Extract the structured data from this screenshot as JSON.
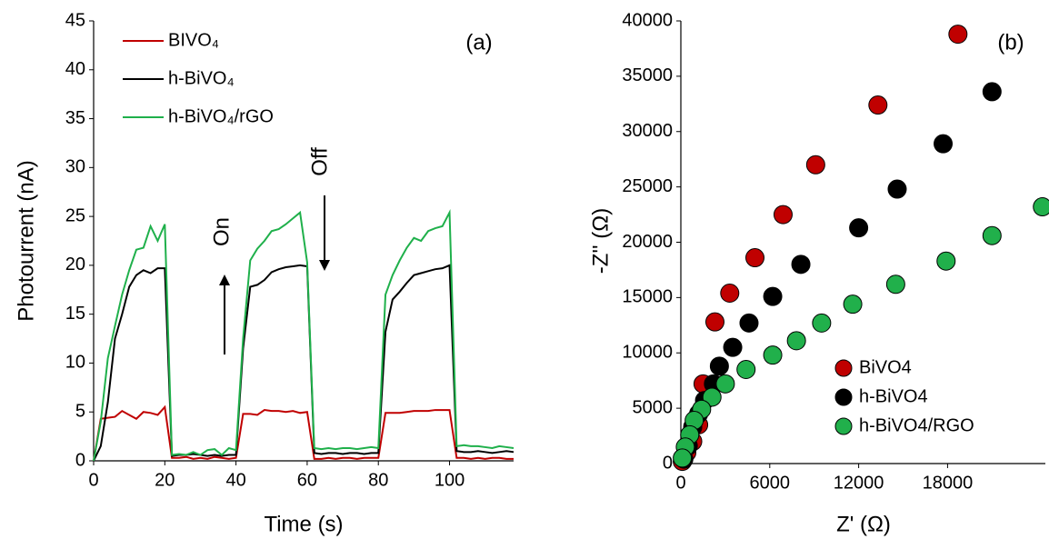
{
  "chart_data": [
    {
      "type": "line",
      "xlabel": "Time (s)",
      "ylabel": "Photourrent (nA)",
      "annotations": [
        "(a)",
        "On",
        "Off"
      ],
      "x": [
        0,
        2,
        4,
        6,
        8,
        10,
        12,
        14,
        16,
        18,
        20,
        22,
        24,
        26,
        28,
        30,
        32,
        34,
        36,
        38,
        40,
        42,
        44,
        46,
        48,
        50,
        52,
        54,
        56,
        58,
        60,
        62,
        64,
        66,
        68,
        70,
        72,
        74,
        76,
        78,
        80,
        82,
        84,
        86,
        88,
        90,
        92,
        94,
        96,
        98,
        100,
        102,
        104,
        106,
        108,
        110,
        112,
        114,
        116,
        118
      ],
      "xlim": [
        0,
        118
      ],
      "xticks": [
        0,
        20,
        40,
        60,
        80,
        100
      ],
      "ylim": [
        0,
        45
      ],
      "yticks": [
        0,
        5,
        10,
        15,
        20,
        25,
        30,
        35,
        40,
        45
      ],
      "series": [
        {
          "name": "BIVO₄",
          "color": "#c00000",
          "values": [
            0,
            4.3,
            4.4,
            4.5,
            5.1,
            4.7,
            4.3,
            5.0,
            4.9,
            4.7,
            5.5,
            0.3,
            0.3,
            0.4,
            0.2,
            0.3,
            0.2,
            0.4,
            0.3,
            0.2,
            0.3,
            4.8,
            4.8,
            4.7,
            5.2,
            5.1,
            5.1,
            5.0,
            5.1,
            4.9,
            5.0,
            0.2,
            0.2,
            0.3,
            0.2,
            0.3,
            0.3,
            0.2,
            0.3,
            0.3,
            0.3,
            4.9,
            4.9,
            4.9,
            5.0,
            5.1,
            5.1,
            5.1,
            5.2,
            5.2,
            5.2,
            0.3,
            0.3,
            0.2,
            0.3,
            0.2,
            0.3,
            0.3,
            0.2,
            0.2
          ]
        },
        {
          "name": "h-BiVO₄",
          "color": "#000000",
          "values": [
            0,
            1.5,
            6,
            12.5,
            15,
            17.8,
            19,
            19.5,
            19.2,
            19.7,
            19.7,
            0.5,
            0.6,
            0.6,
            0.7,
            0.6,
            0.5,
            0.6,
            0.5,
            0.6,
            0.6,
            11.5,
            17.8,
            18,
            18.5,
            19.3,
            19.6,
            19.8,
            19.9,
            20,
            19.9,
            0.8,
            0.7,
            0.8,
            0.8,
            0.7,
            0.8,
            0.8,
            0.7,
            0.8,
            0.8,
            13.2,
            16.5,
            17.3,
            18.2,
            19,
            19.2,
            19.4,
            19.6,
            19.7,
            20,
            1,
            0.9,
            0.9,
            1,
            0.9,
            0.8,
            0.9,
            1,
            0.9
          ]
        },
        {
          "name": "h-BiVO₄/rGO",
          "color": "#1fb04b",
          "values": [
            0,
            4,
            10.5,
            13.8,
            17,
            19.5,
            21.6,
            21.8,
            24,
            22.5,
            24.2,
            0.6,
            0.7,
            0.6,
            0.9,
            0.6,
            1.1,
            1.2,
            0.6,
            1.3,
            1.1,
            12.5,
            20.5,
            21.7,
            22.5,
            23.5,
            23.7,
            24.2,
            24.8,
            25.4,
            20.3,
            1.3,
            1.2,
            1.3,
            1.2,
            1.3,
            1.3,
            1.2,
            1.3,
            1.4,
            1.3,
            17,
            19,
            20.5,
            21.8,
            22.8,
            22.5,
            23.5,
            23.8,
            24,
            25.4,
            1.5,
            1.6,
            1.5,
            1.5,
            1.4,
            1.3,
            1.5,
            1.4,
            1.3
          ]
        }
      ]
    },
    {
      "type": "scatter",
      "xlabel": "Z' (Ω)",
      "ylabel": "-Z'' (Ω)",
      "annotations": [
        "(b)"
      ],
      "xlim": [
        0,
        24600
      ],
      "xticks": [
        0,
        6000,
        12000,
        18000
      ],
      "ylim": [
        0,
        40000
      ],
      "yticks": [
        0,
        5000,
        10000,
        15000,
        20000,
        25000,
        30000,
        35000,
        40000
      ],
      "series": [
        {
          "name": "BiVO4",
          "color": "#c00000",
          "x": [
            18700,
            13300,
            9100,
            6900,
            5000,
            3300,
            2300,
            1500,
            1200,
            800,
            400,
            100
          ],
          "values": [
            38800,
            32400,
            27000,
            22500,
            18600,
            15400,
            12800,
            7200,
            3500,
            2000,
            1000,
            200
          ]
        },
        {
          "name": "h-BiVO4",
          "color": "#000000",
          "x": [
            21000,
            17700,
            14600,
            12000,
            8100,
            6200,
            4600,
            3500,
            2600,
            2200,
            1600,
            1200,
            800,
            500,
            200
          ],
          "values": [
            33600,
            28900,
            24800,
            21300,
            18000,
            15100,
            12700,
            10500,
            8800,
            7200,
            5700,
            4500,
            3300,
            1600,
            400
          ]
        },
        {
          "name": "h-BiVO4/RGO",
          "color": "#21b04b",
          "x": [
            24400,
            21000,
            17900,
            14500,
            11600,
            9500,
            7800,
            6200,
            4400,
            3000,
            2100,
            1400,
            900,
            600,
            300,
            100
          ],
          "values": [
            23200,
            20600,
            18300,
            16200,
            14400,
            12700,
            11100,
            9800,
            8500,
            7200,
            6000,
            4900,
            3900,
            2600,
            1500,
            500
          ]
        }
      ]
    }
  ]
}
